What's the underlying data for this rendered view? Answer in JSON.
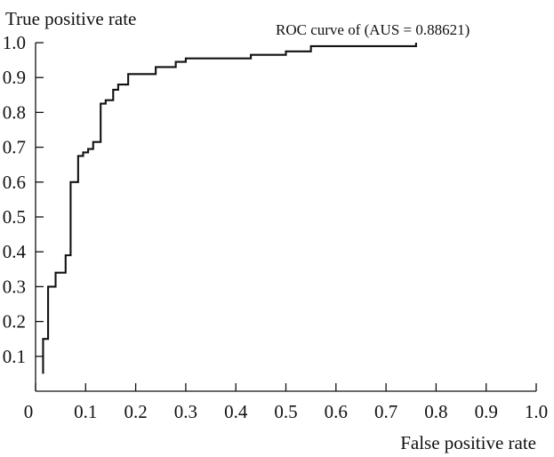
{
  "chart_data": {
    "type": "line",
    "ylabel": "True positive rate",
    "xlabel": "False positive rate",
    "annotation": "ROC curve of (AUS = 0.88621)",
    "xlim": [
      0,
      1.0
    ],
    "ylim": [
      0,
      1.0
    ],
    "x_ticks": [
      "0",
      "0.1",
      "0.2",
      "0.3",
      "0.4",
      "0.5",
      "0.6",
      "0.7",
      "0.8",
      "0.9",
      "1.0"
    ],
    "y_ticks": [
      "0.1",
      "0.2",
      "0.3",
      "0.4",
      "0.5",
      "0.6",
      "0.7",
      "0.8",
      "0.9",
      "1.0"
    ],
    "grid": false,
    "series": [
      {
        "color": "#111111",
        "x": [
          0.015,
          0.015,
          0.025,
          0.025,
          0.04,
          0.04,
          0.06,
          0.06,
          0.07,
          0.07,
          0.085,
          0.085,
          0.095,
          0.095,
          0.105,
          0.105,
          0.115,
          0.115,
          0.13,
          0.13,
          0.14,
          0.14,
          0.155,
          0.155,
          0.165,
          0.165,
          0.175,
          0.175,
          0.185,
          0.185,
          0.24,
          0.24,
          0.28,
          0.28,
          0.3,
          0.3,
          0.43,
          0.43,
          0.5,
          0.5,
          0.55,
          0.55,
          0.59,
          0.59,
          0.76,
          0.76
        ],
        "y": [
          0.05,
          0.15,
          0.15,
          0.3,
          0.3,
          0.34,
          0.34,
          0.39,
          0.39,
          0.6,
          0.6,
          0.675,
          0.675,
          0.685,
          0.685,
          0.695,
          0.695,
          0.715,
          0.715,
          0.825,
          0.825,
          0.835,
          0.835,
          0.865,
          0.865,
          0.88,
          0.88,
          0.88,
          0.88,
          0.91,
          0.91,
          0.93,
          0.93,
          0.945,
          0.945,
          0.955,
          0.955,
          0.965,
          0.965,
          0.975,
          0.975,
          0.99,
          0.99,
          0.99,
          0.99,
          1.0
        ]
      }
    ]
  }
}
